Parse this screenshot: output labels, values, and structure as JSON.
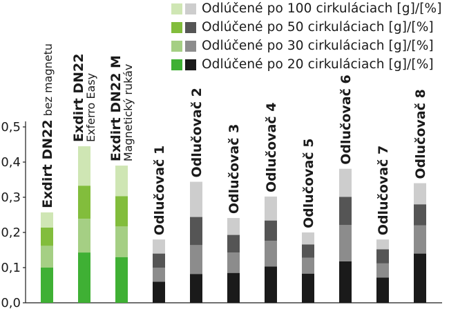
{
  "chart_data": {
    "type": "bar",
    "stacked": true,
    "categories": [
      "Exdirt DN22 bez magnetu",
      "Exdirt DN22 Exferro Easy",
      "Exdirt DN22 M Magnetický rukáv",
      "Odlučovač 1",
      "Odlučovač 2",
      "Odlučovač 3",
      "Odlučovač 4",
      "Odlučovač 5",
      "Odlučovač 6",
      "Odlučovač 7",
      "Odlučovač 8"
    ],
    "category_labels": [
      {
        "main": "Exdirt DN22",
        "sub": "bez magnetu",
        "inline": true
      },
      {
        "main": "Exdirt DN22",
        "sub": "Exferro Easy",
        "inline": false
      },
      {
        "main": "Exdirt DN22 M",
        "sub": "Magnetický rukáv",
        "inline": false
      },
      {
        "main": "Odlučovač 1",
        "sub": "",
        "inline": true
      },
      {
        "main": "Odlučovač 2",
        "sub": "",
        "inline": true
      },
      {
        "main": "Odlučovač 3",
        "sub": "",
        "inline": true
      },
      {
        "main": "Odlučovač 4",
        "sub": "",
        "inline": true
      },
      {
        "main": "Odlučovač 5",
        "sub": "",
        "inline": true
      },
      {
        "main": "Odlučovač 6",
        "sub": "",
        "inline": true
      },
      {
        "main": "Odlučovač 7",
        "sub": "",
        "inline": true
      },
      {
        "main": "Odlučovač 8",
        "sub": "",
        "inline": true
      }
    ],
    "series": [
      {
        "name": "Odlúčené po 20 cirkuláciach [g]/[%]",
        "values": [
          0.1,
          0.143,
          0.13,
          0.06,
          0.082,
          0.085,
          0.103,
          0.083,
          0.118,
          0.072,
          0.14
        ]
      },
      {
        "name": "Odlúčené po 30 cirkuláciach [g]/[%]",
        "values": [
          0.062,
          0.096,
          0.087,
          0.04,
          0.082,
          0.058,
          0.073,
          0.045,
          0.103,
          0.04,
          0.08
        ]
      },
      {
        "name": "Odlúčené po 50 cirkuláciach [g]/[%]",
        "values": [
          0.052,
          0.094,
          0.086,
          0.04,
          0.08,
          0.05,
          0.058,
          0.038,
          0.08,
          0.04,
          0.06
        ]
      },
      {
        "name": "Odlúčené po 100 cirkuláciach [g]/[%]",
        "values": [
          0.043,
          0.112,
          0.087,
          0.04,
          0.1,
          0.048,
          0.068,
          0.034,
          0.08,
          0.028,
          0.06
        ]
      }
    ],
    "series_colors": {
      "green": [
        "#3fb034",
        "#a5cf84",
        "#82bd3c",
        "#cfe6b4"
      ],
      "gray": [
        "#1a1a1a",
        "#8c8c8c",
        "#555555",
        "#cdcdcd"
      ]
    },
    "legend_order": [
      3,
      2,
      1,
      0
    ],
    "green_category_count": 3,
    "ylim": [
      0,
      0.55
    ],
    "yticks": [
      0,
      0.1,
      0.2,
      0.3,
      0.4,
      0.5
    ],
    "ytick_labels": [
      "0,0",
      "0,1",
      "0,2",
      "0,3",
      "0,4",
      "0,5"
    ],
    "grid": false,
    "legend_position": "top-right"
  }
}
